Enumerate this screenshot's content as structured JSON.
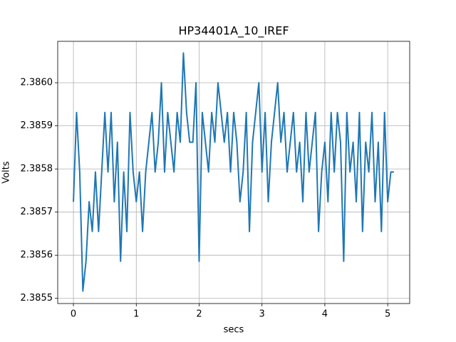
{
  "chart_data": {
    "type": "line",
    "title": "HP34401A_10_IREF",
    "x_label": "secs",
    "y_label": "Volts",
    "color": "#1f77b4",
    "grid": true,
    "xlim": [
      -0.25,
      5.35
    ],
    "ylim": [
      2.385488,
      2.386096
    ],
    "xticks": [
      0,
      1,
      2,
      3,
      4,
      5
    ],
    "yticks": [
      2.3855,
      2.3856,
      2.3857,
      2.3858,
      2.3859,
      {
        "value": 2.386,
        "label": "2.3860"
      }
    ],
    "x": [
      0,
      0.05,
      0.1,
      0.15,
      0.2,
      0.25,
      0.3,
      0.35,
      0.4,
      0.45,
      0.5,
      0.55,
      0.6,
      0.65,
      0.7,
      0.75,
      0.8,
      0.85,
      0.9,
      0.95,
      1,
      1.05,
      1.1,
      1.15,
      1.2,
      1.25,
      1.3,
      1.35,
      1.4,
      1.45,
      1.5,
      1.55,
      1.6,
      1.65,
      1.7,
      1.75,
      1.8,
      1.85,
      1.9,
      1.95,
      2,
      2.05,
      2.1,
      2.15,
      2.2,
      2.25,
      2.3,
      2.35,
      2.4,
      2.45,
      2.5,
      2.55,
      2.6,
      2.65,
      2.7,
      2.75,
      2.8,
      2.85,
      2.9,
      2.95,
      3,
      3.05,
      3.1,
      3.15,
      3.2,
      3.25,
      3.3,
      3.35,
      3.4,
      3.45,
      3.5,
      3.55,
      3.6,
      3.65,
      3.7,
      3.75,
      3.8,
      3.85,
      3.9,
      3.95,
      4,
      4.05,
      4.1,
      4.15,
      4.2,
      4.25,
      4.3,
      4.35,
      4.4,
      4.45,
      4.5,
      4.55,
      4.6,
      4.65,
      4.7,
      4.75,
      4.8,
      4.85,
      4.9,
      4.95,
      5,
      5.05,
      5.1
    ],
    "values": [
      2.385724,
      2.385931,
      2.385793,
      2.385517,
      2.385586,
      2.385724,
      2.385655,
      2.385793,
      2.385655,
      2.385793,
      2.385931,
      2.385793,
      2.385931,
      2.385724,
      2.385862,
      2.385586,
      2.385793,
      2.385655,
      2.385931,
      2.385793,
      2.385724,
      2.385793,
      2.385655,
      2.385793,
      2.385862,
      2.385931,
      2.385793,
      2.385862,
      2.386,
      2.385793,
      2.385931,
      2.385862,
      2.385793,
      2.385931,
      2.385862,
      2.386069,
      2.385931,
      2.385862,
      2.385862,
      2.386,
      2.385586,
      2.385931,
      2.385862,
      2.385793,
      2.385931,
      2.385862,
      2.386,
      2.385931,
      2.385862,
      2.385931,
      2.385793,
      2.385931,
      2.385862,
      2.385724,
      2.385793,
      2.385931,
      2.385655,
      2.385862,
      2.385931,
      2.386,
      2.385793,
      2.385931,
      2.385724,
      2.385862,
      2.385931,
      2.386,
      2.385862,
      2.385931,
      2.385793,
      2.385862,
      2.385931,
      2.385793,
      2.385862,
      2.385724,
      2.385931,
      2.385793,
      2.385862,
      2.385931,
      2.385655,
      2.385793,
      2.385862,
      2.385724,
      2.385931,
      2.385793,
      2.385931,
      2.385862,
      2.385586,
      2.385931,
      2.385793,
      2.385862,
      2.385724,
      2.385931,
      2.385655,
      2.385862,
      2.385793,
      2.385931,
      2.385724,
      2.385862,
      2.385655,
      2.385931,
      2.385724,
      2.385793,
      2.385793
    ]
  }
}
